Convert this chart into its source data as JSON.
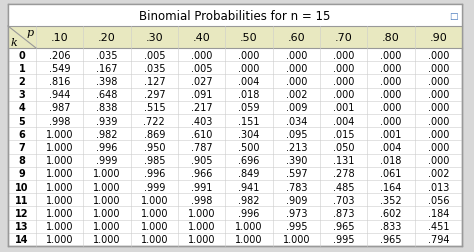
{
  "title": "Binomial Probabilities for n = 15",
  "p_values": [
    ".10",
    ".20",
    ".30",
    ".40",
    ".50",
    ".60",
    ".70",
    ".80",
    ".90"
  ],
  "k_values": [
    "0",
    "1",
    "2",
    "3",
    "4",
    "5",
    "6",
    "7",
    "8",
    "9",
    "10",
    "11",
    "12",
    "13",
    "14"
  ],
  "table_data": [
    [
      ".206",
      ".035",
      ".005",
      ".000",
      ".000",
      ".000",
      ".000",
      ".000",
      ".000"
    ],
    [
      ".549",
      ".167",
      ".035",
      ".005",
      ".000",
      ".000",
      ".000",
      ".000",
      ".000"
    ],
    [
      ".816",
      ".398",
      ".127",
      ".027",
      ".004",
      ".000",
      ".000",
      ".000",
      ".000"
    ],
    [
      ".944",
      ".648",
      ".297",
      ".091",
      ".018",
      ".002",
      ".000",
      ".000",
      ".000"
    ],
    [
      ".987",
      ".838",
      ".515",
      ".217",
      ".059",
      ".009",
      ".001",
      ".000",
      ".000"
    ],
    [
      ".998",
      ".939",
      ".722",
      ".403",
      ".151",
      ".034",
      ".004",
      ".000",
      ".000"
    ],
    [
      "1.000",
      ".982",
      ".869",
      ".610",
      ".304",
      ".095",
      ".015",
      ".001",
      ".000"
    ],
    [
      "1.000",
      ".996",
      ".950",
      ".787",
      ".500",
      ".213",
      ".050",
      ".004",
      ".000"
    ],
    [
      "1.000",
      ".999",
      ".985",
      ".905",
      ".696",
      ".390",
      ".131",
      ".018",
      ".000"
    ],
    [
      "1.000",
      "1.000",
      ".996",
      ".966",
      ".849",
      ".597",
      ".278",
      ".061",
      ".002"
    ],
    [
      "1.000",
      "1.000",
      ".999",
      ".991",
      ".941",
      ".783",
      ".485",
      ".164",
      ".013"
    ],
    [
      "1.000",
      "1.000",
      "1.000",
      ".998",
      ".982",
      ".909",
      ".703",
      ".352",
      ".056"
    ],
    [
      "1.000",
      "1.000",
      "1.000",
      "1.000",
      ".996",
      ".973",
      ".873",
      ".602",
      ".184"
    ],
    [
      "1.000",
      "1.000",
      "1.000",
      "1.000",
      "1.000",
      ".995",
      ".965",
      ".833",
      ".451"
    ],
    [
      "1.000",
      "1.000",
      "1.000",
      "1.000",
      "1.000",
      "1.000",
      ".995",
      ".965",
      ".794"
    ]
  ],
  "header_bg": "#e8e8c0",
  "outer_bg": "#d8d8d8",
  "table_bg": "#ffffff",
  "title_row_bg": "#ffffff",
  "border_color": "#999999",
  "grid_color": "#cccccc",
  "text_color": "#000000",
  "title_fontsize": 8.5,
  "cell_fontsize": 7.0,
  "header_fontsize": 8.0,
  "icon_color": "#4477bb"
}
